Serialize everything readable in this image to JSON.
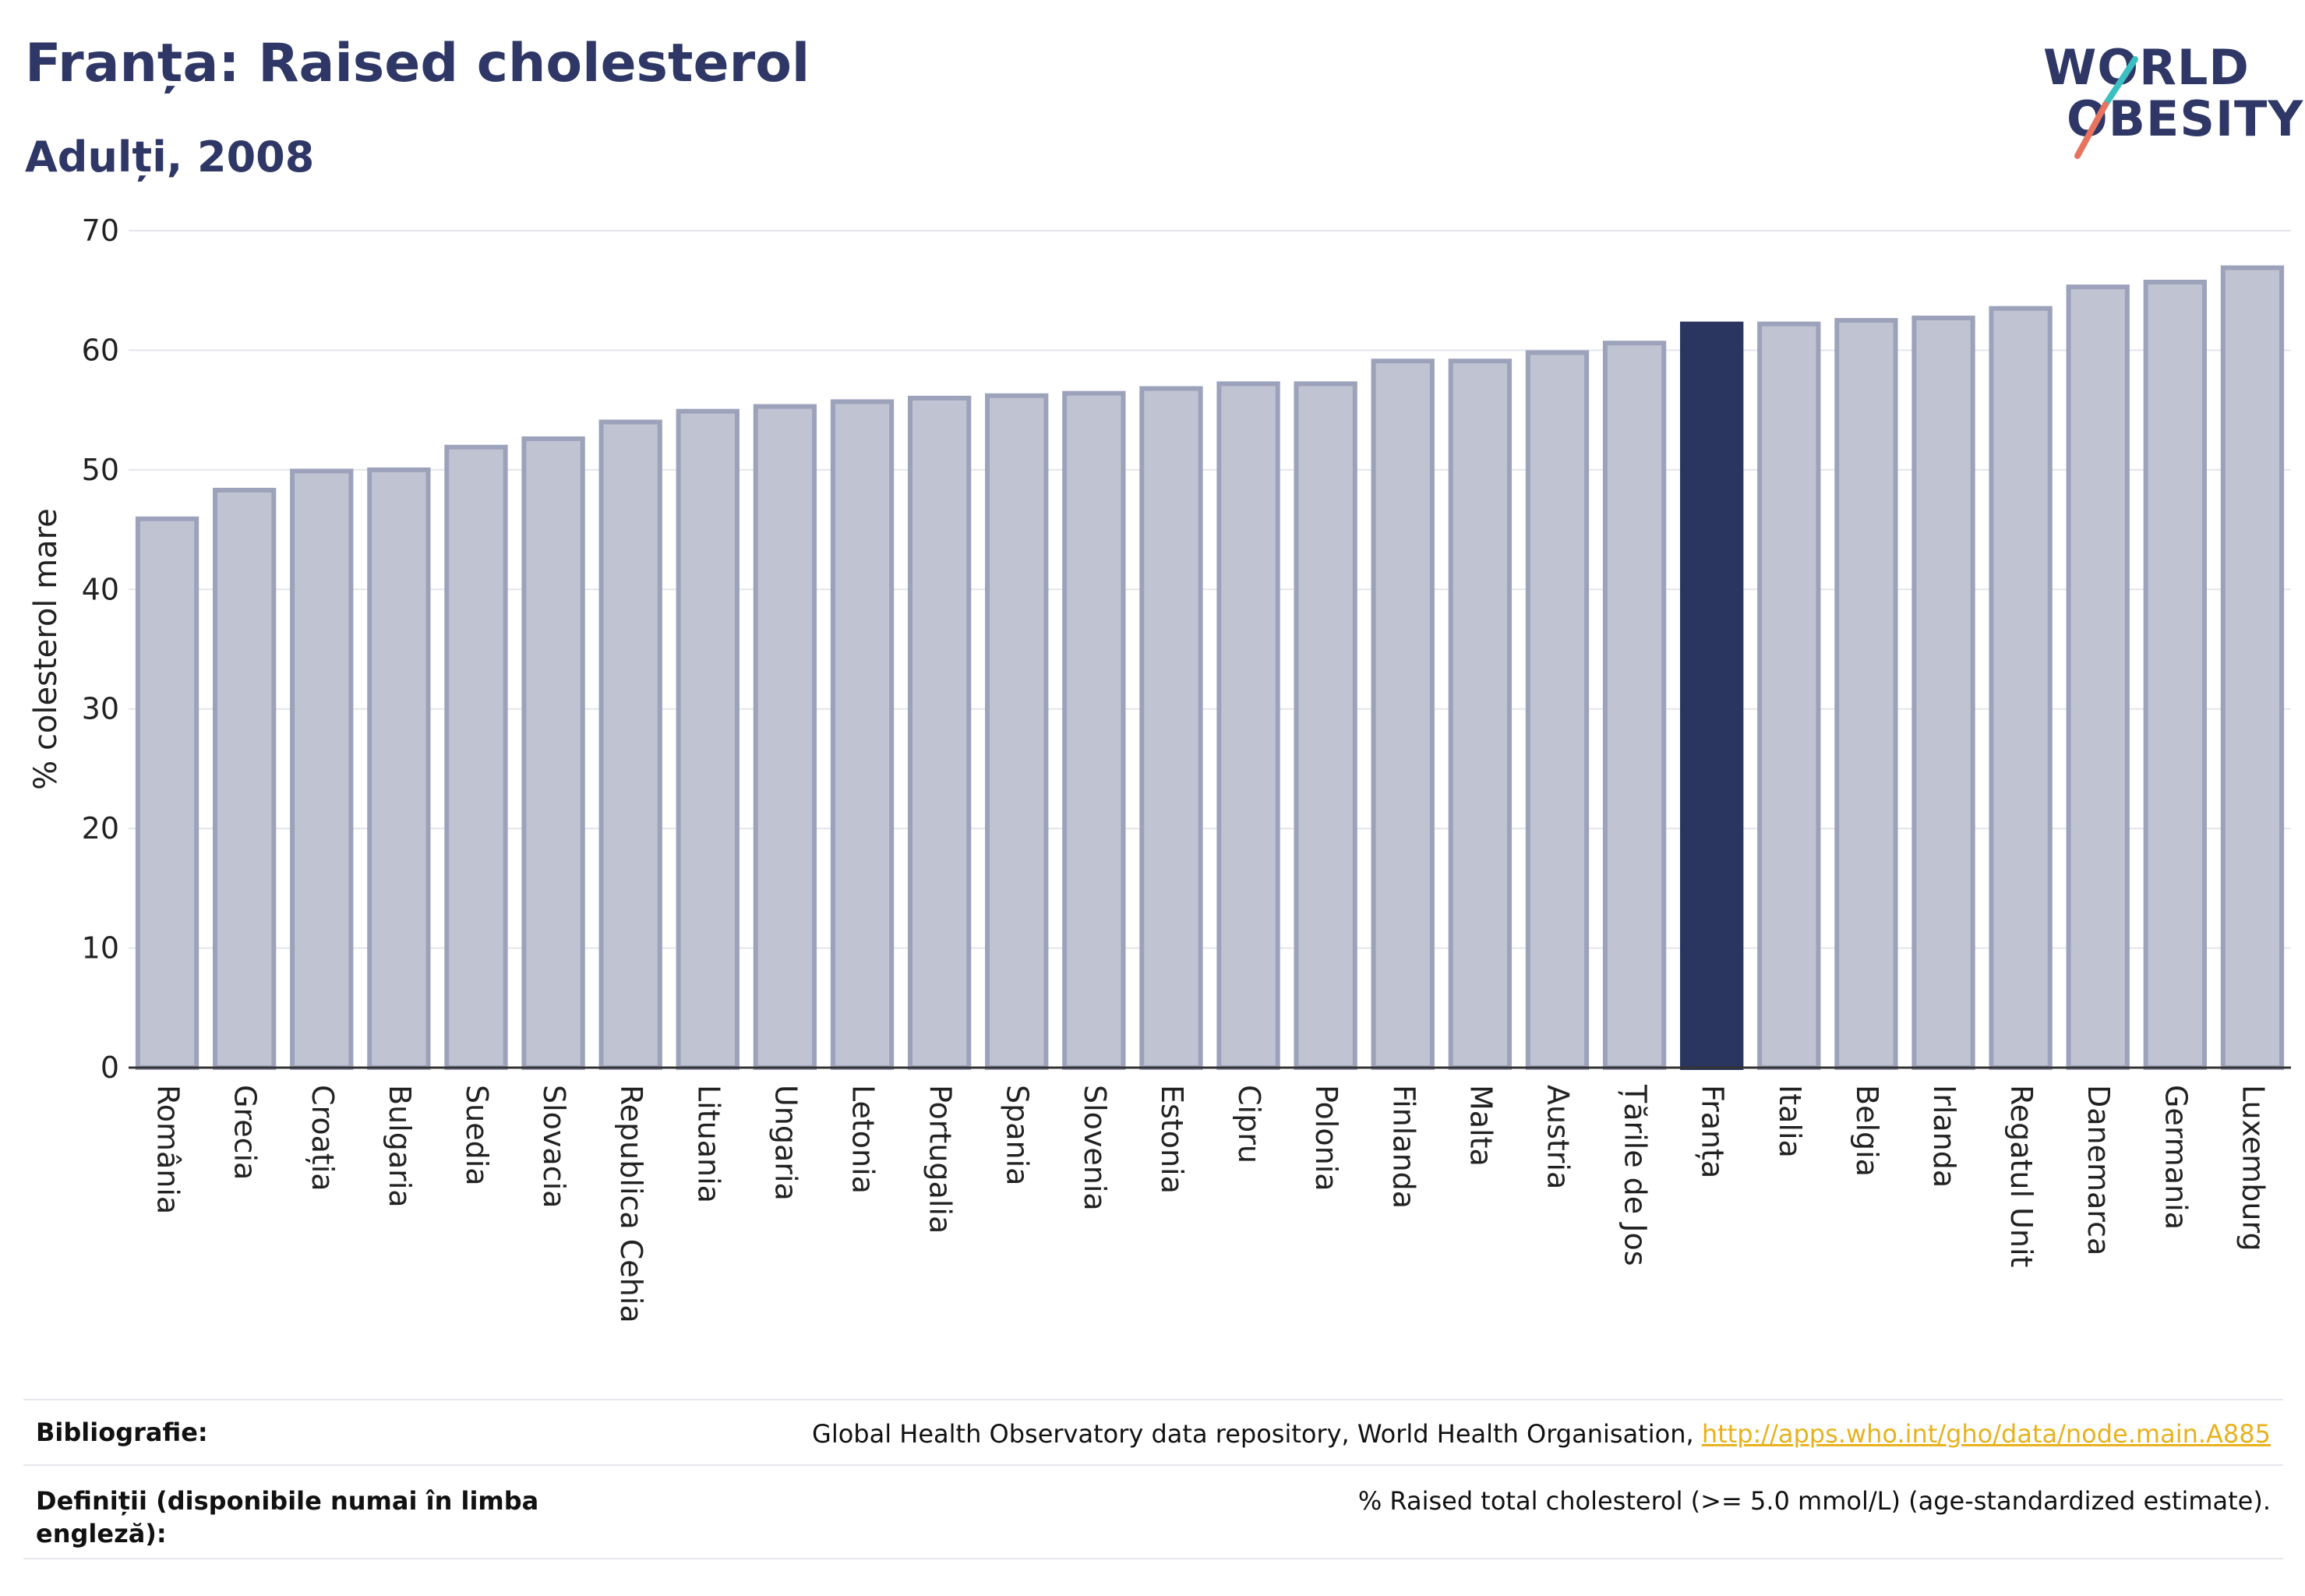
{
  "header": {
    "title": "Franța: Raised cholesterol",
    "subtitle": "Adulți, 2008"
  },
  "logo": {
    "line1": "WORLD",
    "line2": "OBESITY",
    "colors": {
      "text": "#2e3766",
      "slash_teal": "#3bbfc1",
      "slash_coral": "#e8735f"
    }
  },
  "chart_data": {
    "type": "bar",
    "ylabel": "% colesterol mare",
    "xlabel": "",
    "ylim": [
      0,
      70
    ],
    "yticks": [
      0,
      10,
      20,
      30,
      40,
      50,
      60,
      70
    ],
    "grid": true,
    "highlight": "Franța",
    "colors": {
      "bar": "#c0c3d1",
      "bar_edge": "#9da2bb",
      "highlight": "#2a3560"
    },
    "categories": [
      "România",
      "Grecia",
      "Croația",
      "Bulgaria",
      "Suedia",
      "Slovacia",
      "Republica Cehia",
      "Lituania",
      "Ungaria",
      "Letonia",
      "Portugalia",
      "Spania",
      "Slovenia",
      "Estonia",
      "Cipru",
      "Polonia",
      "Finlanda",
      "Malta",
      "Austria",
      "Țările de Jos",
      "Franța",
      "Italia",
      "Belgia",
      "Irlanda",
      "Regatul Unit",
      "Danemarca",
      "Germania",
      "Luxemburg"
    ],
    "values": [
      45.9,
      48.3,
      49.9,
      50.0,
      51.9,
      52.6,
      54.0,
      54.9,
      55.3,
      55.7,
      56.0,
      56.2,
      56.4,
      56.8,
      57.2,
      57.2,
      59.1,
      59.1,
      59.8,
      60.6,
      62.2,
      62.2,
      62.5,
      62.7,
      63.5,
      65.3,
      65.7,
      66.9
    ]
  },
  "footer": {
    "bibliography_label": "Bibliografie:",
    "bibliography_text": "Global Health Observatory data repository, World Health Organisation, ",
    "bibliography_link": "http://apps.who.int/gho/data/node.main.A885",
    "definitions_label": "Definiții (disponibile numai în limba engleză):",
    "definitions_text": "% Raised total cholesterol (>= 5.0 mmol/L) (age-standardized estimate)."
  }
}
